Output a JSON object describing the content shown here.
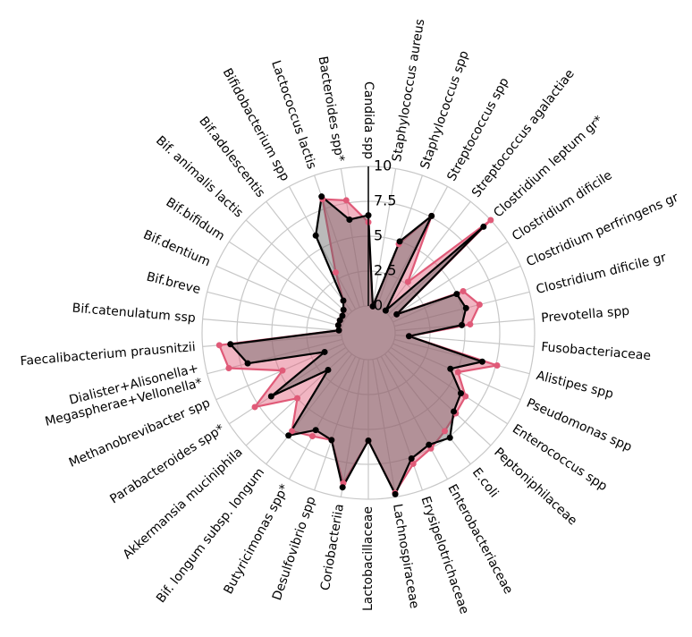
{
  "chart_data": {
    "type": "radar",
    "categories": [
      "Candida spp",
      "Staphylococcus aureus",
      "Staphylococcus spp",
      "Streptococcus spp",
      "Streptococcus agalactiae",
      "Clostridium leptum gr*",
      "Clostridium dificile",
      "Clostridium perfringens gr",
      "Clostridium dificile gr",
      "Prevotella spp",
      "Fusobacteriaceae",
      "Alistipes spp",
      "Pseudomonas spp",
      "Enterococcus spp",
      "Peptoniphilaceae",
      "E.coli",
      "Enterobacteriaceae",
      "Erysipelotrichaceae",
      "Lachnospiraceae",
      "Lactobacillaceae",
      "Coriobacteriia",
      "Desulfovibrio spp",
      "Butyricimonas spp*",
      "Bif. longum subsp. longum",
      "Akkermansia muciniphila",
      "Parabacteroides spp*",
      "Methanobrevibacter spp",
      "Dialister+Alisonella+\nMegaspherae+Vellonella*",
      "Faecalibacterium prausnitzii",
      "Bif.catenulatum ssp",
      "Bif.breve",
      "Bif.dentium",
      "Bif.bifidum",
      "Bif. animalis lactis",
      "Bif.adolescentis",
      "Bifidobacterium spp",
      "Lactococcus lactis",
      "Bacteroides spp*"
    ],
    "series": [
      {
        "color": "#e05a78",
        "values": [
          6,
          0,
          4.8,
          7.6,
          2.7,
          10,
          0.5,
          5.5,
          6.3,
          5.4,
          1,
          7.6,
          5.1,
          6.4,
          6.6,
          7,
          7.5,
          8,
          9.7,
          5.8,
          9,
          6.2,
          6.5,
          7,
          5,
          7.8,
          4.8,
          8.4,
          8.8,
          0.2,
          0.3,
          0.3,
          0.3,
          0.5,
          1,
          3,
          8.2,
          7.7
        ]
      },
      {
        "color": "#000000",
        "values": [
          6.5,
          0,
          5,
          7.6,
          0.1,
          9.3,
          0.5,
          5,
          5.3,
          4.8,
          1,
          6.5,
          4.5,
          6,
          6.4,
          7.6,
          7.2,
          7.6,
          9.8,
          5.8,
          9.3,
          6.2,
          6,
          7.4,
          2,
          6.4,
          1.5,
          7,
          8,
          0.2,
          0.3,
          0.3,
          0.3,
          0.5,
          1,
          6,
          8.4,
          6.3
        ]
      }
    ],
    "ylim": [
      0,
      10
    ],
    "yticks": [
      0,
      2.5,
      5,
      7.5,
      10
    ],
    "grid": true
  }
}
